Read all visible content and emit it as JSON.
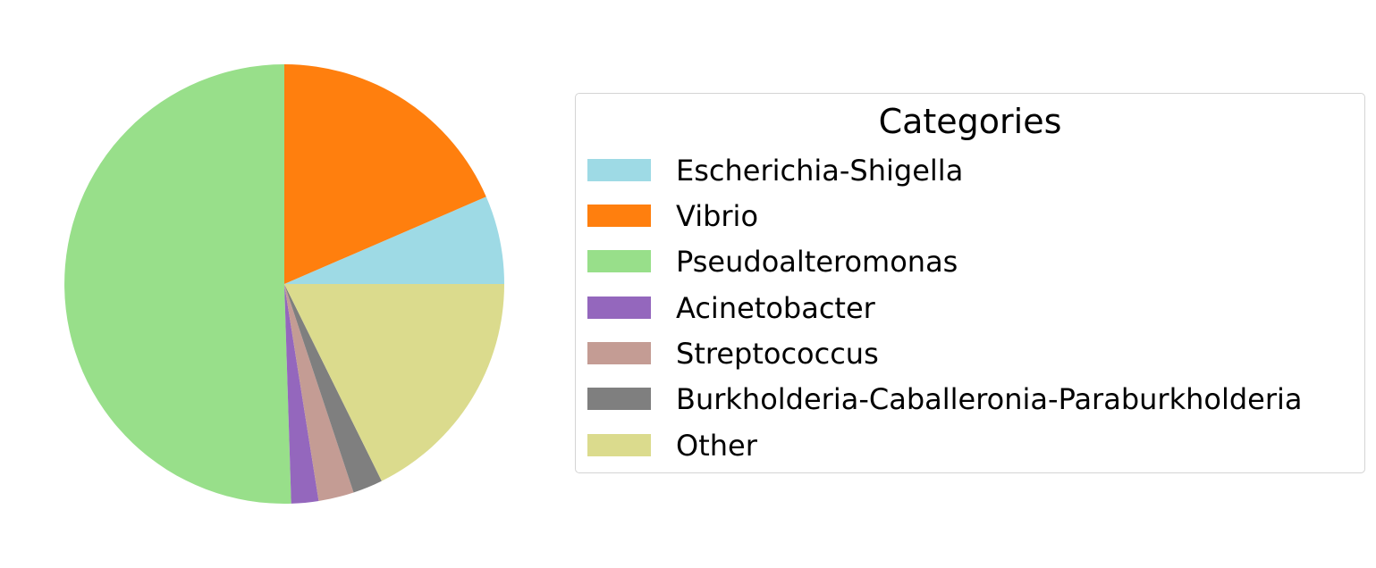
{
  "chart_data": {
    "type": "pie",
    "slices": [
      {
        "label": "Escherichia-Shigella",
        "value": 6.5,
        "color": "#9edae5"
      },
      {
        "label": "Vibrio",
        "value": 18.5,
        "color": "#ff7f0e"
      },
      {
        "label": "Pseudoalteromonas",
        "value": 50.5,
        "color": "#98df8a"
      },
      {
        "label": "Acinetobacter",
        "value": 2.0,
        "color": "#9467bd"
      },
      {
        "label": "Streptococcus",
        "value": 2.6,
        "color": "#c49c94"
      },
      {
        "label": "Burkholderia-Caballeronia-Paraburkholderia",
        "value": 2.2,
        "color": "#7f7f7f"
      },
      {
        "label": "Other",
        "value": 17.7,
        "color": "#dbdb8d"
      }
    ],
    "start_angle_deg": 0,
    "direction": "counterclockwise",
    "legend": {
      "title": "Categories",
      "placement": "right"
    }
  }
}
